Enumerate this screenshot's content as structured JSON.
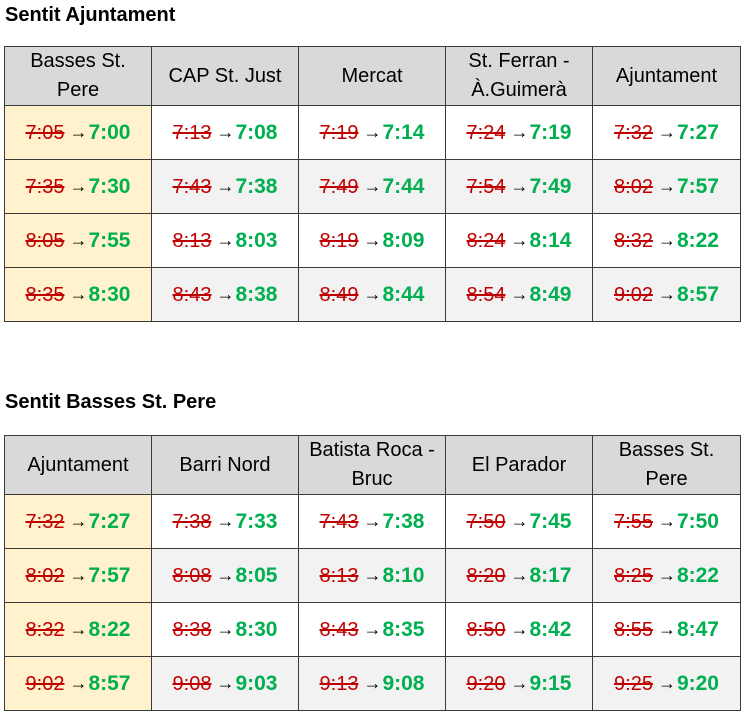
{
  "sections": [
    {
      "title": "Sentit Ajuntament",
      "headers": [
        "Basses St. Pere",
        "CAP St. Just",
        "Mercat",
        "St. Ferran - À.Guimerà",
        "Ajuntament"
      ],
      "rows": [
        [
          {
            "old": "7:05",
            "new": "7:00"
          },
          {
            "old": "7:13",
            "new": "7:08"
          },
          {
            "old": "7:19",
            "new": "7:14"
          },
          {
            "old": "7:24",
            "new": "7:19"
          },
          {
            "old": "7:32",
            "new": "7:27"
          }
        ],
        [
          {
            "old": "7:35",
            "new": "7:30"
          },
          {
            "old": "7:43",
            "new": "7:38"
          },
          {
            "old": "7:49",
            "new": "7:44"
          },
          {
            "old": "7:54",
            "new": "7:49"
          },
          {
            "old": "8:02",
            "new": "7:57"
          }
        ],
        [
          {
            "old": "8:05",
            "new": "7:55"
          },
          {
            "old": "8:13",
            "new": "8:03"
          },
          {
            "old": "8:19",
            "new": "8:09"
          },
          {
            "old": "8:24",
            "new": "8:14"
          },
          {
            "old": "8:32",
            "new": "8:22"
          }
        ],
        [
          {
            "old": "8:35",
            "new": "8:30"
          },
          {
            "old": "8:43",
            "new": "8:38"
          },
          {
            "old": "8:49",
            "new": "8:44"
          },
          {
            "old": "8:54",
            "new": "8:49"
          },
          {
            "old": "9:02",
            "new": "8:57"
          }
        ]
      ]
    },
    {
      "title": "Sentit Basses St. Pere",
      "headers": [
        "Ajuntament",
        "Barri Nord",
        "Batista Roca - Bruc",
        "El Parador",
        "Basses St. Pere"
      ],
      "rows": [
        [
          {
            "old": "7:32",
            "new": "7:27"
          },
          {
            "old": "7:38",
            "new": "7:33"
          },
          {
            "old": "7:43",
            "new": "7:38"
          },
          {
            "old": "7:50",
            "new": "7:45"
          },
          {
            "old": "7:55",
            "new": "7:50"
          }
        ],
        [
          {
            "old": "8:02",
            "new": "7:57"
          },
          {
            "old": "8:08",
            "new": "8:05"
          },
          {
            "old": "8:13",
            "new": "8:10"
          },
          {
            "old": "8:20",
            "new": "8:17"
          },
          {
            "old": "8:25",
            "new": "8:22"
          }
        ],
        [
          {
            "old": "8:32",
            "new": "8:22"
          },
          {
            "old": "8:38",
            "new": "8:30"
          },
          {
            "old": "8:43",
            "new": "8:35"
          },
          {
            "old": "8:50",
            "new": "8:42"
          },
          {
            "old": "8:55",
            "new": "8:47"
          }
        ],
        [
          {
            "old": "9:02",
            "new": "8:57"
          },
          {
            "old": "9:08",
            "new": "9:03"
          },
          {
            "old": "9:13",
            "new": "9:08"
          },
          {
            "old": "9:20",
            "new": "9:15"
          },
          {
            "old": "9:25",
            "new": "9:20"
          }
        ]
      ]
    }
  ],
  "arrow_glyph": "→",
  "colors": {
    "old_time": "#c00000",
    "new_time": "#00b050",
    "header_bg": "#d9d9d9",
    "first_col_bg": "#fff2cc",
    "alt_row_bg": "#f2f2f2"
  }
}
